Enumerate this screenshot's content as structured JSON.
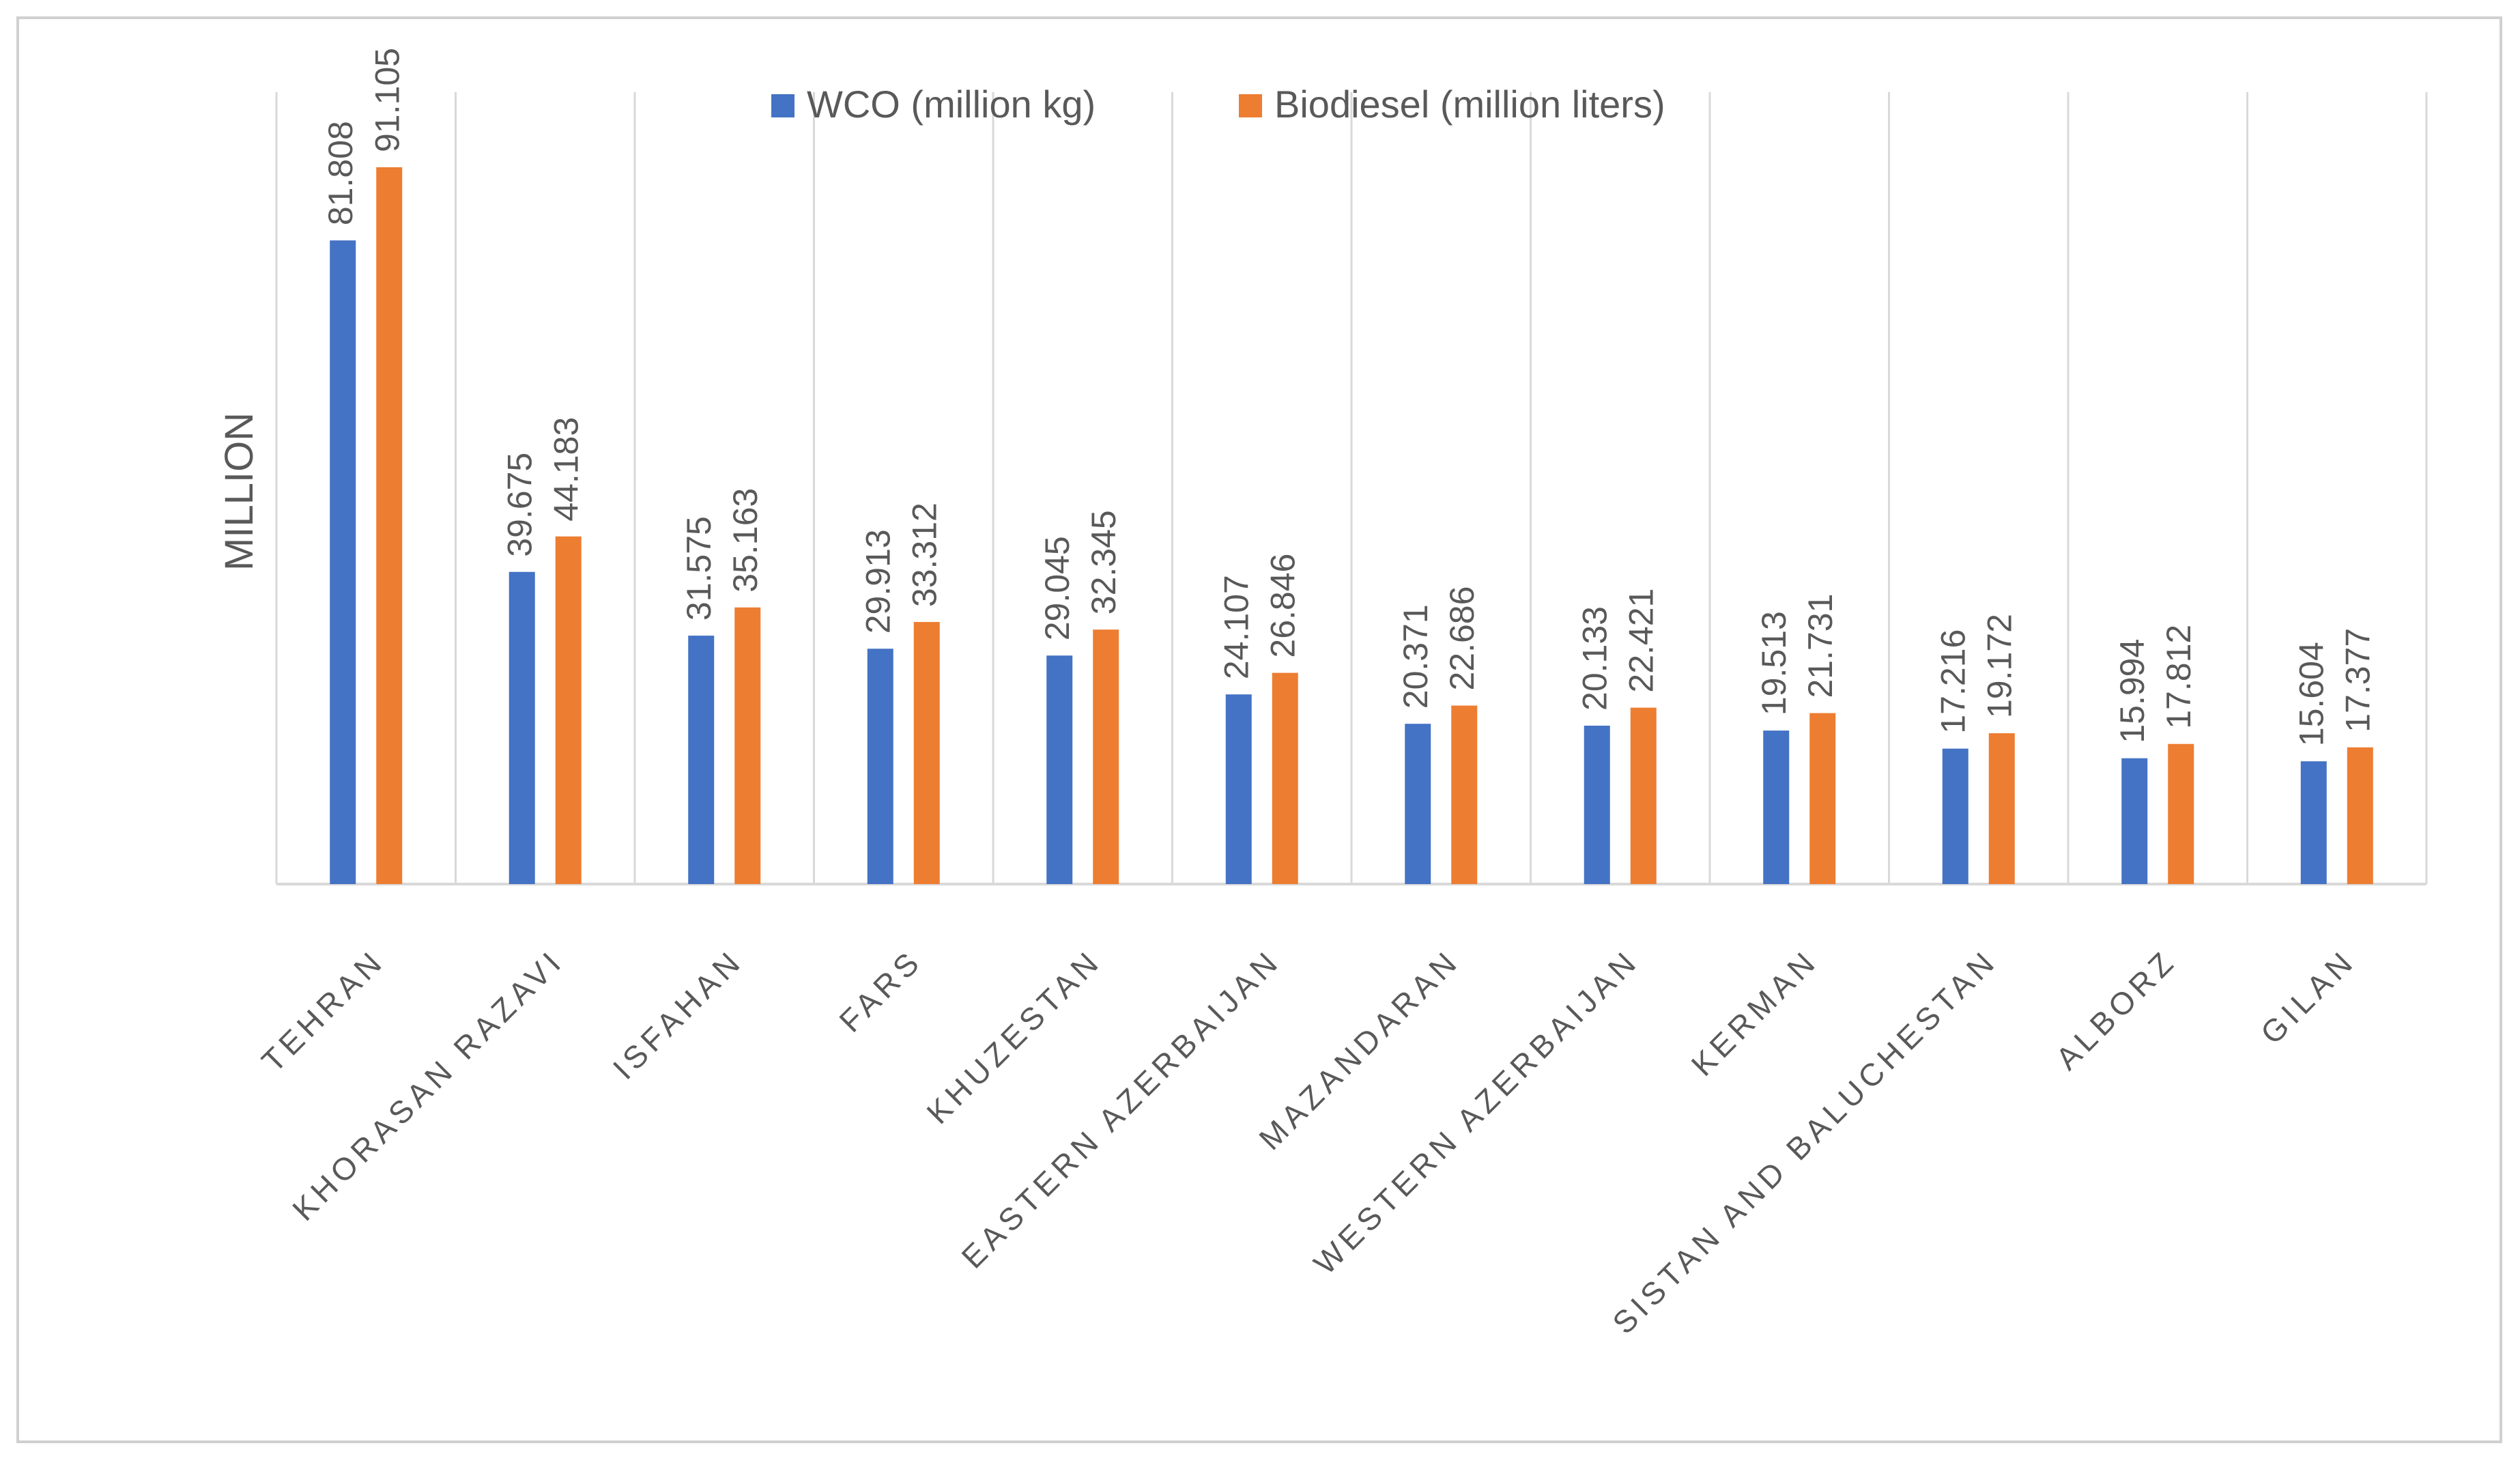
{
  "chart_data": {
    "type": "bar",
    "title": "",
    "xlabel": "",
    "ylabel": "MILLION",
    "ylim": [
      0,
      100
    ],
    "grid": "vertical category separators",
    "legend_position": "top-center",
    "categories": [
      "TEHRAN",
      "KHORASAN RAZAVI",
      "ISFAHAN",
      "FARS",
      "KHUZESTAN",
      "EASTERN AZERBAIJAN",
      "MAZANDARAN",
      "WESTERN AZERBAIJAN",
      "KERMAN",
      "SISTAN AND BALUCHESTAN",
      "ALBORZ",
      "GILAN"
    ],
    "series": [
      {
        "name": "WCO (million kg)",
        "color": "#4472C4",
        "values": [
          81.808,
          39.675,
          31.575,
          29.913,
          29.045,
          24.107,
          20.371,
          20.133,
          19.513,
          17.216,
          15.994,
          15.604
        ],
        "labels": [
          "81.808",
          "39.675",
          "31.575",
          "29.913",
          "29.045",
          "24.107",
          "20.371",
          "20.133",
          "19.513",
          "17.216",
          "15.994",
          "15.604"
        ]
      },
      {
        "name": "Biodiesel (million liters)",
        "color": "#ED7D31",
        "values": [
          91.105,
          44.183,
          35.163,
          33.312,
          32.345,
          26.846,
          22.686,
          22.421,
          21.731,
          19.172,
          17.812,
          17.377
        ],
        "labels": [
          "91.105",
          "44.183",
          "35.163",
          "33.312",
          "32.345",
          "26.846",
          "22.686",
          "22.421",
          "21.731",
          "19.172",
          "17.812",
          "17.377"
        ]
      }
    ]
  },
  "colors": {
    "grid": "#d9d9d9",
    "axis": "#d9d9d9",
    "text": "#595959",
    "frame": "#d0d0d0"
  }
}
